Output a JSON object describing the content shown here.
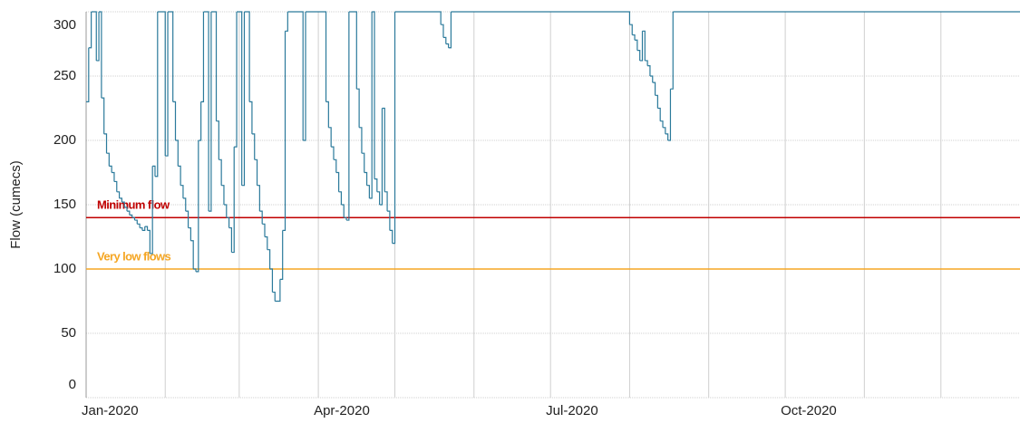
{
  "chart_data": {
    "type": "step-line",
    "y_label": "Flow (cumecs)",
    "color": "#2b7a9b",
    "x": [
      0,
      1,
      2,
      4,
      5,
      6,
      7,
      8,
      9,
      10,
      11,
      12,
      13,
      14,
      15,
      16,
      17,
      18,
      19,
      20,
      21,
      22,
      23,
      24,
      25,
      26,
      27,
      28,
      31,
      32,
      34,
      35,
      36,
      37,
      38,
      39,
      40,
      41,
      42,
      43,
      44,
      45,
      46,
      48,
      49,
      51,
      52,
      53,
      54,
      55,
      56,
      57,
      58,
      59,
      61,
      62,
      64,
      65,
      66,
      67,
      68,
      69,
      70,
      71,
      72,
      73,
      74,
      76,
      77,
      78,
      79,
      85,
      86,
      94,
      95,
      96,
      97,
      98,
      99,
      100,
      101,
      102,
      103,
      106,
      107,
      108,
      109,
      110,
      111,
      112,
      113,
      114,
      115,
      116,
      117,
      118,
      119,
      120,
      121,
      139,
      140,
      141,
      142,
      143,
      213,
      214,
      215,
      216,
      217,
      218,
      219,
      220,
      221,
      222,
      223,
      224,
      225,
      226,
      227,
      228,
      229,
      230,
      366
    ],
    "values": [
      230,
      272,
      300,
      262,
      300,
      233,
      205,
      190,
      180,
      175,
      168,
      160,
      155,
      152,
      148,
      145,
      142,
      140,
      138,
      135,
      132,
      130,
      133,
      130,
      112,
      180,
      172,
      300,
      188,
      300,
      230,
      200,
      180,
      165,
      155,
      145,
      132,
      122,
      100,
      98,
      200,
      230,
      300,
      145,
      300,
      215,
      185,
      165,
      150,
      140,
      132,
      113,
      195,
      300,
      165,
      300,
      230,
      205,
      185,
      165,
      145,
      135,
      125,
      115,
      100,
      82,
      75,
      92,
      130,
      285,
      300,
      200,
      300,
      230,
      210,
      195,
      185,
      175,
      160,
      150,
      140,
      138,
      300,
      240,
      210,
      190,
      175,
      165,
      155,
      300,
      170,
      160,
      150,
      225,
      160,
      145,
      130,
      120,
      300,
      290,
      280,
      275,
      272,
      300,
      290,
      282,
      278,
      270,
      262,
      285,
      262,
      258,
      250,
      245,
      235,
      225,
      215,
      210,
      205,
      200,
      240,
      300,
      300
    ],
    "xlim": [
      0,
      366
    ],
    "xticks": [
      {
        "value": 0,
        "label": "Jan-2020"
      },
      {
        "value": 91,
        "label": "Apr-2020"
      },
      {
        "value": 182,
        "label": "Jul-2020"
      },
      {
        "value": 274,
        "label": "Oct-2020"
      }
    ],
    "minor_xticks": [
      31,
      60,
      121,
      152,
      213,
      244,
      305,
      335
    ],
    "ylim": [
      0,
      300
    ],
    "yticks": [
      0,
      50,
      100,
      150,
      200,
      250,
      300
    ],
    "grid": true,
    "thresholds": [
      {
        "label": "Minimum flow",
        "value": 140,
        "color": "#c00000"
      },
      {
        "label": "Very low flows",
        "value": 100,
        "color": "#f5a623"
      }
    ]
  }
}
